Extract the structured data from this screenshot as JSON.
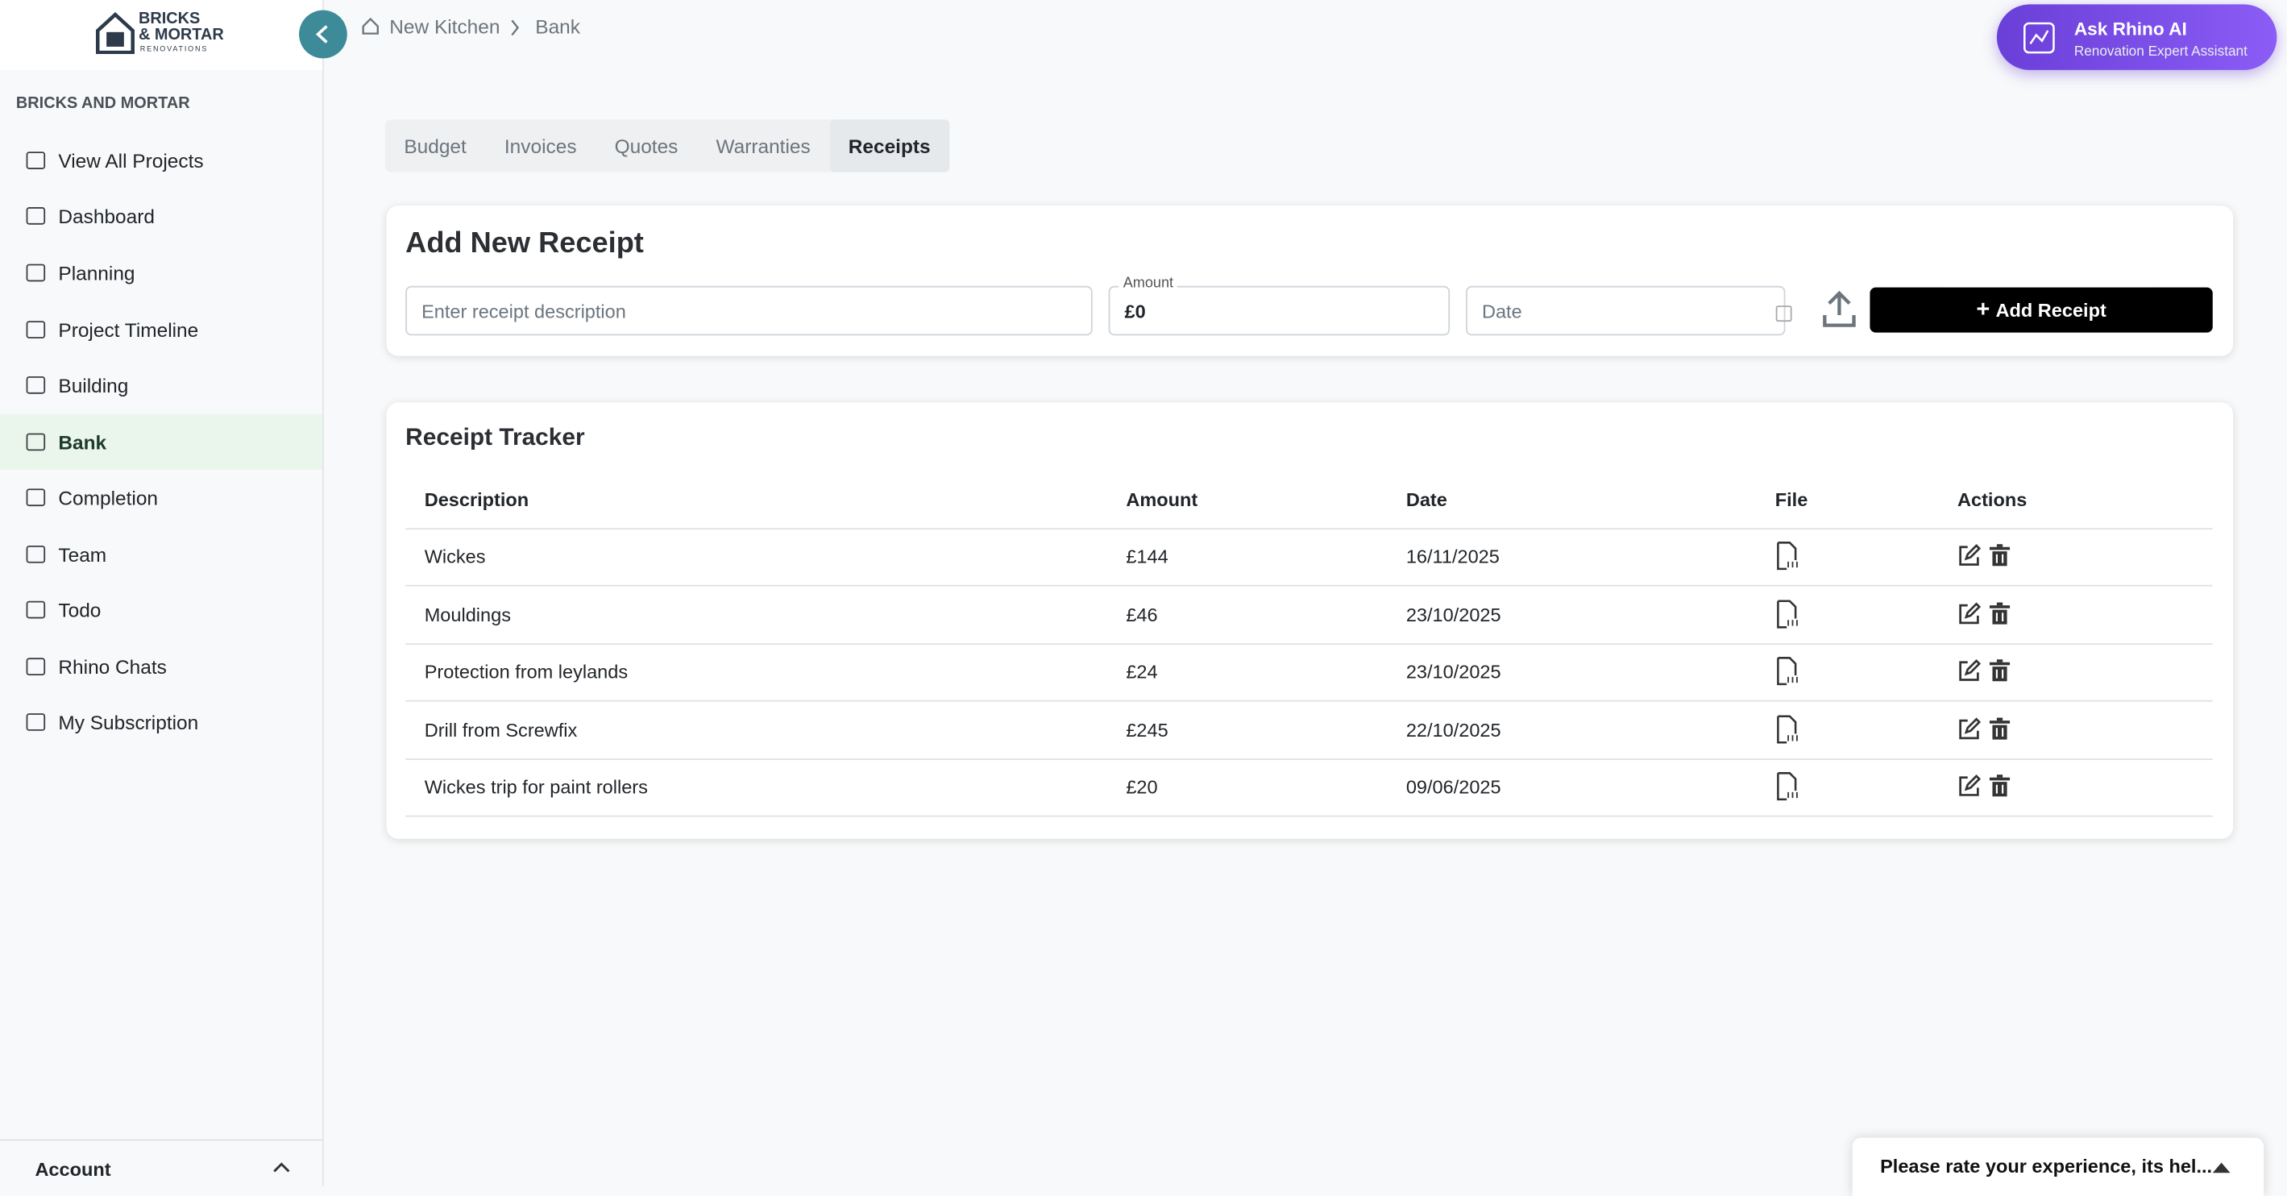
{
  "sidebar": {
    "logo": [
      "BRICKS",
      "& MORTAR",
      "RENOVATIONS"
    ],
    "section": "BRICKS AND MORTAR",
    "nav": [
      "View All Projects",
      "Dashboard",
      "Planning",
      "Project Timeline",
      "Building",
      "Bank",
      "Completion",
      "Team",
      "Todo",
      "Rhino Chats",
      "My Subscription"
    ],
    "account": "Account"
  },
  "breadcrumb": [
    "New Kitchen",
    "Bank"
  ],
  "assistant": {
    "title": "Ask Rhino AI",
    "subtitle": "Renovation Expert Assistant"
  },
  "tabs": [
    "Budget",
    "Invoices",
    "Quotes",
    "Warranties",
    "Receipts"
  ],
  "form": {
    "title": "Add New Receipt",
    "description_placeholder": "Enter receipt description",
    "amount_label": "Amount",
    "amount_value": "£0",
    "date_placeholder": "Date",
    "button": "Add Receipt"
  },
  "table": {
    "title": "Receipt Tracker",
    "headers": [
      "Description",
      "Amount",
      "Date",
      "File",
      "Actions"
    ],
    "rows": [
      [
        "Wickes",
        "£144",
        "16/11/2025"
      ],
      [
        "Mouldings",
        "£46",
        "23/10/2025"
      ],
      [
        "Protection from leylands",
        "£24",
        "23/10/2025"
      ],
      [
        "Drill from Screwfix",
        "£245",
        "22/10/2025"
      ],
      [
        "Wickes trip for paint rollers",
        "£20",
        "09/06/2025"
      ]
    ]
  },
  "feedback": "Please rate your experience, its hel..."
}
